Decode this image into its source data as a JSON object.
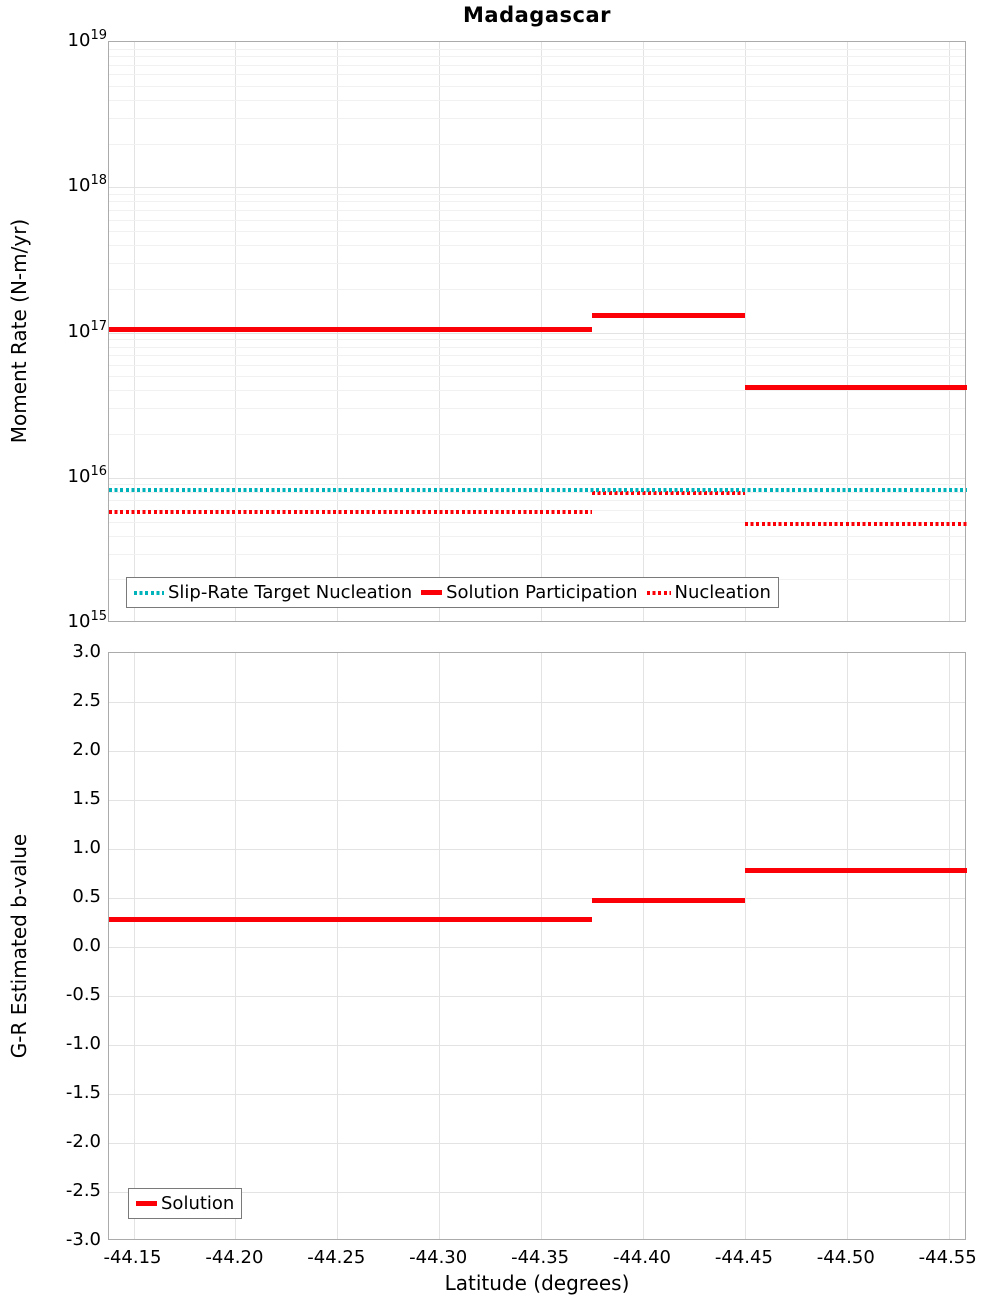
{
  "title": "Madagascar",
  "colors": {
    "red": "#fb0006",
    "teal": "#00b3ba",
    "spine": "#ababab",
    "grid_major": "#e3e3e3",
    "grid_minor": "#f1f1f1",
    "legend_border": "#7a7a7a",
    "text": "#000000",
    "background": "#ffffff"
  },
  "chart_data": [
    {
      "type": "line",
      "subplot": "top",
      "title": "Madagascar",
      "ylabel": "Moment Rate (N-m/yr)",
      "yscale": "log",
      "ylim": [
        1000000000000000.0,
        1e+19
      ],
      "ytick_base": "10",
      "ytick_exponents": [
        "19",
        "18",
        "17",
        "16",
        "15"
      ],
      "grid": true,
      "legend_position": "lower left",
      "x_range": [
        -44.138,
        -44.559
      ],
      "series": [
        {
          "name": "Slip-Rate Target Nucleation",
          "color_key": "teal",
          "line_style": "dotted",
          "segments": [
            {
              "x0": -44.138,
              "x1": -44.559,
              "y": 8200000000000000.0
            }
          ]
        },
        {
          "name": "Solution Participation",
          "color_key": "red",
          "line_style": "solid",
          "segments": [
            {
              "x0": -44.138,
              "x1": -44.375,
              "y": 1.05e+17
            },
            {
              "x0": -44.375,
              "x1": -44.45,
              "y": 1.3e+17
            },
            {
              "x0": -44.45,
              "x1": -44.559,
              "y": 4.2e+16
            }
          ]
        },
        {
          "name": "Nucleation",
          "color_key": "red",
          "line_style": "dotted",
          "segments": [
            {
              "x0": -44.138,
              "x1": -44.375,
              "y": 5800000000000000.0
            },
            {
              "x0": -44.375,
              "x1": -44.45,
              "y": 7900000000000000.0
            },
            {
              "x0": -44.45,
              "x1": -44.559,
              "y": 4800000000000000.0
            }
          ]
        }
      ]
    },
    {
      "type": "line",
      "subplot": "bottom",
      "ylabel": "G-R Estimated b-value",
      "yscale": "linear",
      "ylim": [
        -3.0,
        3.0
      ],
      "ytick_labels": [
        "3.0",
        "2.5",
        "2.0",
        "1.5",
        "1.0",
        "0.5",
        "0.0",
        "-0.5",
        "-1.0",
        "-1.5",
        "-2.0",
        "-2.5",
        "-3.0"
      ],
      "xlabel": "Latitude (degrees)",
      "xticks": [
        -44.15,
        -44.2,
        -44.25,
        -44.3,
        -44.35,
        -44.4,
        -44.45,
        -44.5,
        -44.55
      ],
      "xtick_labels": [
        "-44.15",
        "-44.20",
        "-44.25",
        "-44.30",
        "-44.35",
        "-44.40",
        "-44.45",
        "-44.50",
        "-44.55"
      ],
      "grid": true,
      "legend_position": "lower left",
      "x_range": [
        -44.138,
        -44.559
      ],
      "series": [
        {
          "name": "Solution",
          "color_key": "red",
          "line_style": "solid",
          "segments": [
            {
              "x0": -44.138,
              "x1": -44.375,
              "y": 0.28
            },
            {
              "x0": -44.375,
              "x1": -44.45,
              "y": 0.47
            },
            {
              "x0": -44.45,
              "x1": -44.559,
              "y": 0.78
            }
          ]
        }
      ]
    }
  ]
}
